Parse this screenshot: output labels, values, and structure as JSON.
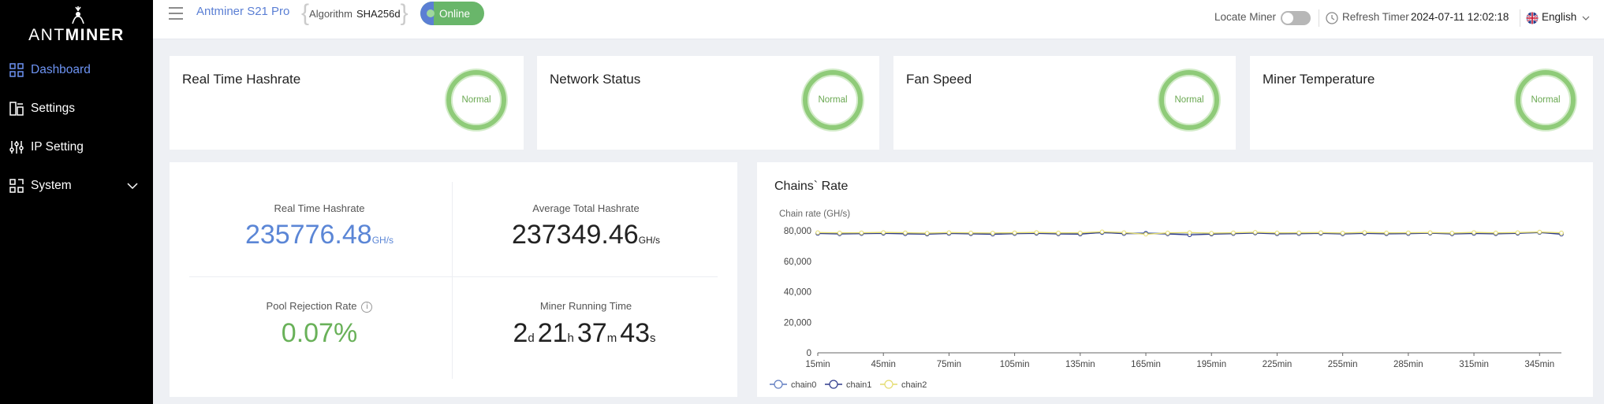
{
  "app": {
    "logo_light": "ANT",
    "logo_bold": "MINER"
  },
  "sidebar": {
    "items": [
      {
        "label": "Dashboard",
        "icon": "dashboard-icon",
        "active": true
      },
      {
        "label": "Settings",
        "icon": "settings-icon"
      },
      {
        "label": "IP Setting",
        "icon": "ip-setting-icon"
      },
      {
        "label": "System",
        "icon": "system-icon",
        "expandable": true
      }
    ]
  },
  "topbar": {
    "model": "Antminer S21 Pro",
    "algorithm_label": "Algorithm",
    "algorithm_value": "SHA256d",
    "status": "Online",
    "locate_miner": "Locate Miner",
    "refresh_timer_label": "Refresh Timer",
    "refresh_timer_value": "2024-07-11 12:02:18",
    "language": "English",
    "colors": {
      "accent": "#5b7fd4",
      "online": "#69b66a"
    }
  },
  "status_cards": [
    {
      "title": "Real Time Hashrate",
      "status": "Normal"
    },
    {
      "title": "Network Status",
      "status": "Normal"
    },
    {
      "title": "Fan Speed",
      "status": "Normal"
    },
    {
      "title": "Miner Temperature",
      "status": "Normal"
    }
  ],
  "stats": {
    "real_time_hashrate": {
      "label": "Real Time Hashrate",
      "value": "235776.48",
      "unit": "GH/s"
    },
    "average_total_hashrate": {
      "label": "Average Total Hashrate",
      "value": "237349.46",
      "unit": "GH/s"
    },
    "pool_rejection_rate": {
      "label": "Pool Rejection Rate",
      "value": "0.07%",
      "info": "i"
    },
    "miner_running_time": {
      "label": "Miner Running Time",
      "days": "2",
      "days_unit": "d",
      "hours": "21",
      "hours_unit": "h",
      "minutes": "37",
      "minutes_unit": "m",
      "seconds": "43",
      "seconds_unit": "s"
    }
  },
  "chart_data": {
    "type": "line",
    "title": "Chains` Rate",
    "ylabel": "Chain rate (GH/s)",
    "xlabel": "",
    "ylim": [
      0,
      80000
    ],
    "yticks": [
      "0",
      "20,000",
      "40,000",
      "60,000",
      "80,000"
    ],
    "x": [
      "15min",
      "25min",
      "35min",
      "45min",
      "55min",
      "65min",
      "75min",
      "85min",
      "95min",
      "105min",
      "115min",
      "125min",
      "135min",
      "145min",
      "155min",
      "165min",
      "175min",
      "185min",
      "195min",
      "205min",
      "215min",
      "225min",
      "235min",
      "245min",
      "255min",
      "265min",
      "275min",
      "285min",
      "295min",
      "305min",
      "315min",
      "325min",
      "335min",
      "345min",
      "355min"
    ],
    "xtick_labels": [
      "15min",
      "45min",
      "75min",
      "105min",
      "135min",
      "165min",
      "195min",
      "225min",
      "255min",
      "285min",
      "315min",
      "345min"
    ],
    "series": [
      {
        "name": "chain0",
        "color": "#5f7cc0",
        "values": [
          78500,
          78200,
          78300,
          78600,
          78400,
          78200,
          78500,
          78300,
          78100,
          78400,
          78600,
          78300,
          78200,
          78700,
          78400,
          78500,
          78300,
          78600,
          78200,
          78400,
          78700,
          78300,
          78400,
          78500,
          78200,
          78600,
          78300,
          78400,
          78500,
          78200,
          78600,
          78300,
          78500,
          78800,
          78400
        ]
      },
      {
        "name": "chain1",
        "color": "#2e3a8c",
        "values": [
          78200,
          77900,
          78100,
          78300,
          78000,
          77800,
          78200,
          78000,
          77700,
          78100,
          78300,
          77900,
          77800,
          78900,
          78100,
          78200,
          77900,
          77300,
          77800,
          78100,
          78500,
          78000,
          78100,
          78300,
          77900,
          78300,
          78000,
          78100,
          78400,
          77900,
          78200,
          78000,
          78300,
          78900,
          77700
        ]
      },
      {
        "name": "chain2",
        "color": "#e4dc6e",
        "values": [
          78800,
          78600,
          78700,
          78900,
          78700,
          78400,
          78800,
          78600,
          78500,
          78700,
          78900,
          78600,
          78600,
          79300,
          78800,
          77700,
          78600,
          78800,
          78400,
          78700,
          79000,
          78600,
          78700,
          78800,
          78500,
          78900,
          78600,
          78700,
          78800,
          78500,
          78900,
          78600,
          78800,
          79200,
          78600
        ]
      }
    ],
    "legend_position": "bottom-left",
    "grid": false
  }
}
